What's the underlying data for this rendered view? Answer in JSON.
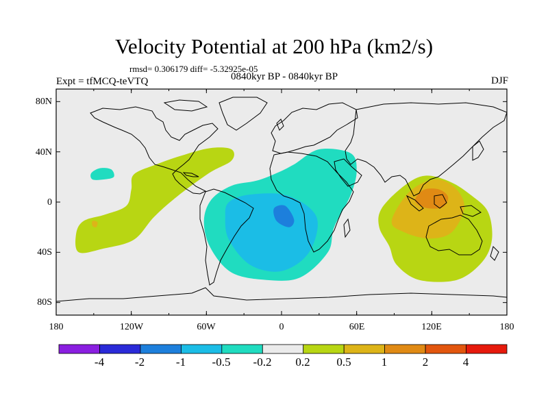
{
  "title": "Velocity Potential at 200 hPa (km2/s)",
  "stats": "rmsd= 0.306179 diff= -5.32925e-05",
  "expt": "Expt = tfMCQ-teVTQ",
  "period": "0840kyr BP - 0840kyr BP",
  "season": "DJF",
  "axes": {
    "lat_labels": [
      "80N",
      "40N",
      "0",
      "40S",
      "80S"
    ],
    "lat_values": [
      80,
      40,
      0,
      -40,
      -80
    ],
    "lon_labels": [
      "180",
      "120W",
      "60W",
      "0",
      "60E",
      "120E",
      "180"
    ],
    "lon_values": [
      -180,
      -120,
      -60,
      0,
      60,
      120,
      180
    ]
  },
  "colorbar": {
    "labels": [
      "-4",
      "-2",
      "-1",
      "-0.5",
      "-0.2",
      "0.2",
      "0.5",
      "1",
      "2",
      "4"
    ],
    "colors": [
      "#8a1fe0",
      "#2a2ad8",
      "#1d7fdc",
      "#1bbde6",
      "#20dcc0",
      "#ebebeb",
      "#b8d613",
      "#ddb418",
      "#e08a14",
      "#e2560e",
      "#e61a0c"
    ]
  },
  "colors": {
    "map_background": "#ebebeb",
    "positive_weak": "#b8d613",
    "positive_mid": "#ddb418",
    "positive_strong": "#e08a14",
    "negative_weak": "#20dcc0",
    "negative_mid": "#1bbde6",
    "negative_strong": "#1d7fdc"
  },
  "chart_data": {
    "type": "heatmap",
    "title": "Velocity Potential at 200 hPa (km2/s)",
    "projection": "cylindrical equidistant",
    "xlim": [
      -180,
      180
    ],
    "ylim": [
      -90,
      90
    ],
    "contour_levels": [
      -4,
      -2,
      -1,
      -0.5,
      -0.2,
      0.2,
      0.5,
      1,
      2,
      4
    ],
    "regions": [
      {
        "name": "north-pacific-negative",
        "level_range": [
          -0.5,
          -0.2
        ],
        "polygon": [
          [
            -152,
            23
          ],
          [
            -145,
            27
          ],
          [
            -136,
            26
          ],
          [
            -134,
            20
          ],
          [
            -142,
            18
          ],
          [
            -151,
            18
          ]
        ]
      },
      {
        "name": "eastern-pacific-positive",
        "level_range": [
          0.2,
          0.5
        ],
        "polygon": [
          [
            -118,
            22
          ],
          [
            -100,
            30
          ],
          [
            -80,
            37
          ],
          [
            -57,
            43
          ],
          [
            -40,
            42
          ],
          [
            -40,
            33
          ],
          [
            -58,
            23
          ],
          [
            -84,
            4
          ],
          [
            -102,
            -12
          ],
          [
            -118,
            -30
          ],
          [
            -142,
            -37
          ],
          [
            -162,
            -40
          ],
          [
            -164,
            -25
          ],
          [
            -158,
            -15
          ],
          [
            -141,
            -10
          ],
          [
            -124,
            -3
          ],
          [
            -120,
            10
          ]
        ]
      },
      {
        "name": "eastern-pacific-core",
        "level_range": [
          0.5,
          1
        ],
        "polygon": [
          [
            -151,
            -15
          ],
          [
            -147,
            -16
          ],
          [
            -148,
            -20
          ],
          [
            -151,
            -19
          ]
        ]
      },
      {
        "name": "atlantic-africa-negative",
        "level_range": [
          -0.5,
          -0.2
        ],
        "polygon": [
          [
            -56,
            2
          ],
          [
            -40,
            13
          ],
          [
            -20,
            17
          ],
          [
            -4,
            23
          ],
          [
            10,
            30
          ],
          [
            30,
            42
          ],
          [
            55,
            39
          ],
          [
            60,
            25
          ],
          [
            55,
            5
          ],
          [
            42,
            -20
          ],
          [
            37,
            -40
          ],
          [
            15,
            -60
          ],
          [
            -12,
            -62
          ],
          [
            -40,
            -56
          ],
          [
            -57,
            -36
          ],
          [
            -62,
            -15
          ]
        ]
      },
      {
        "name": "atlantic-core-negative",
        "level_range": [
          -1,
          -0.5
        ],
        "polygon": [
          [
            -42,
            0
          ],
          [
            -25,
            6
          ],
          [
            5,
            5
          ],
          [
            28,
            -12
          ],
          [
            22,
            -40
          ],
          [
            0,
            -55
          ],
          [
            -25,
            -50
          ],
          [
            -42,
            -30
          ],
          [
            -45,
            -12
          ]
        ]
      },
      {
        "name": "atlantic-minimum",
        "level_range": [
          -2,
          -1
        ],
        "polygon": [
          [
            -6,
            -5
          ],
          [
            3,
            -3
          ],
          [
            10,
            -14
          ],
          [
            6,
            -20
          ],
          [
            -4,
            -15
          ]
        ]
      },
      {
        "name": "maritime-continent-positive",
        "level_range": [
          0.2,
          0.5
        ],
        "polygon": [
          [
            80,
            -5
          ],
          [
            98,
            13
          ],
          [
            115,
            21
          ],
          [
            135,
            16
          ],
          [
            152,
            5
          ],
          [
            165,
            -8
          ],
          [
            168,
            -30
          ],
          [
            160,
            -48
          ],
          [
            140,
            -62
          ],
          [
            110,
            -62
          ],
          [
            92,
            -50
          ],
          [
            86,
            -35
          ],
          [
            78,
            -20
          ]
        ]
      },
      {
        "name": "maritime-continent-core",
        "level_range": [
          0.5,
          1
        ],
        "polygon": [
          [
            88,
            -15
          ],
          [
            102,
            8
          ],
          [
            122,
            18
          ],
          [
            138,
            12
          ],
          [
            146,
            -4
          ],
          [
            136,
            -24
          ],
          [
            118,
            -29
          ],
          [
            98,
            -24
          ]
        ]
      },
      {
        "name": "maritime-continent-maximum",
        "level_range": [
          1,
          2
        ],
        "polygon": [
          [
            107,
            3
          ],
          [
            114,
            10
          ],
          [
            126,
            10
          ],
          [
            133,
            4
          ],
          [
            129,
            -4
          ],
          [
            118,
            -5
          ],
          [
            109,
            -2
          ]
        ]
      }
    ]
  }
}
